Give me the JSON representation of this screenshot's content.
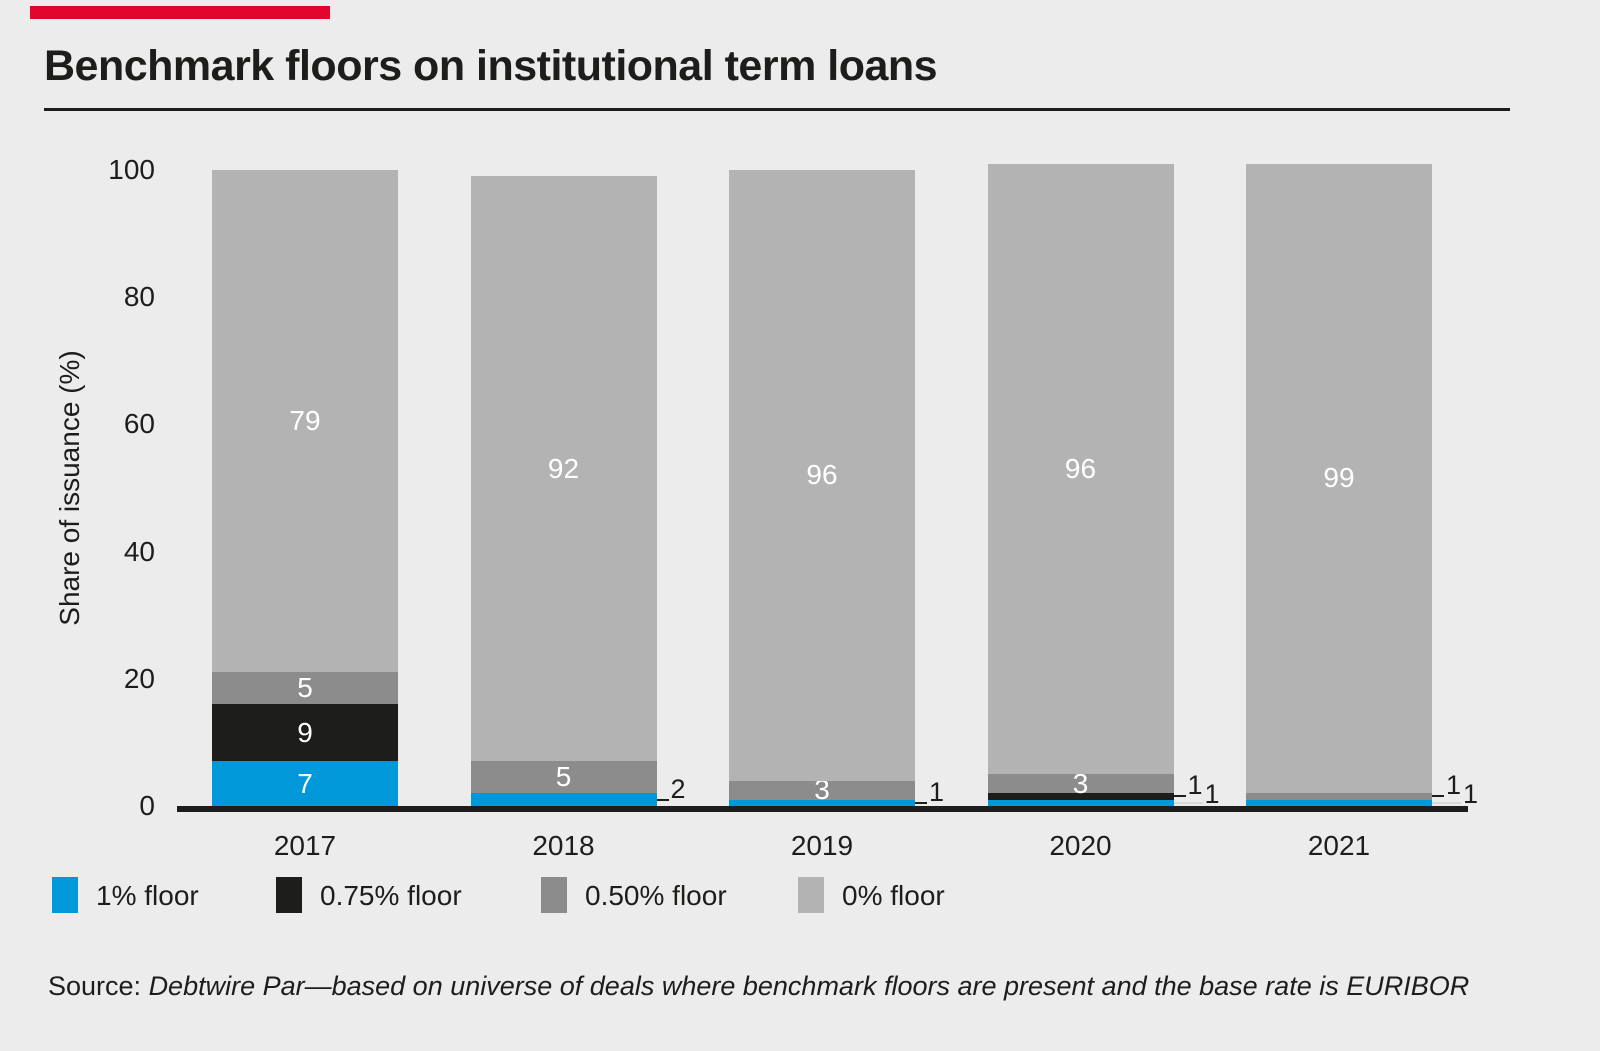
{
  "title": "Benchmark floors on institutional term loans",
  "colors": {
    "background": "#ececec",
    "accent_red": "#e2062c",
    "text": "#1d1d1b",
    "axis": "#1d1d1b",
    "inside_label": "#ffffff",
    "leader_secondary": "#d9d9d9"
  },
  "chart_data": {
    "type": "bar",
    "stacked": true,
    "title": "Benchmark floors on institutional term loans",
    "xlabel": "",
    "ylabel": "Share of issuance (%)",
    "ylim": [
      0,
      100
    ],
    "yticks": [
      0,
      20,
      40,
      60,
      80,
      100
    ],
    "grid": false,
    "legend_position": "bottom",
    "categories": [
      "2017",
      "2018",
      "2019",
      "2020",
      "2021"
    ],
    "series": [
      {
        "name": "1% floor",
        "color": "#0098d8",
        "values": [
          7,
          2,
          1,
          1,
          1
        ]
      },
      {
        "name": "0.75% floor",
        "color": "#1d1d1b",
        "values": [
          9,
          0,
          0,
          1,
          0
        ]
      },
      {
        "name": "0.50% floor",
        "color": "#8c8c8c",
        "values": [
          5,
          5,
          3,
          3,
          1
        ]
      },
      {
        "name": "0% floor",
        "color": "#b3b3b3",
        "values": [
          79,
          92,
          96,
          96,
          99
        ]
      }
    ],
    "bar_totals": [
      100,
      99,
      100,
      101,
      101
    ]
  },
  "source": {
    "label": "Source: ",
    "text": "Debtwire Par—based on universe of deals where benchmark floors are present and the base rate is EURIBOR"
  }
}
